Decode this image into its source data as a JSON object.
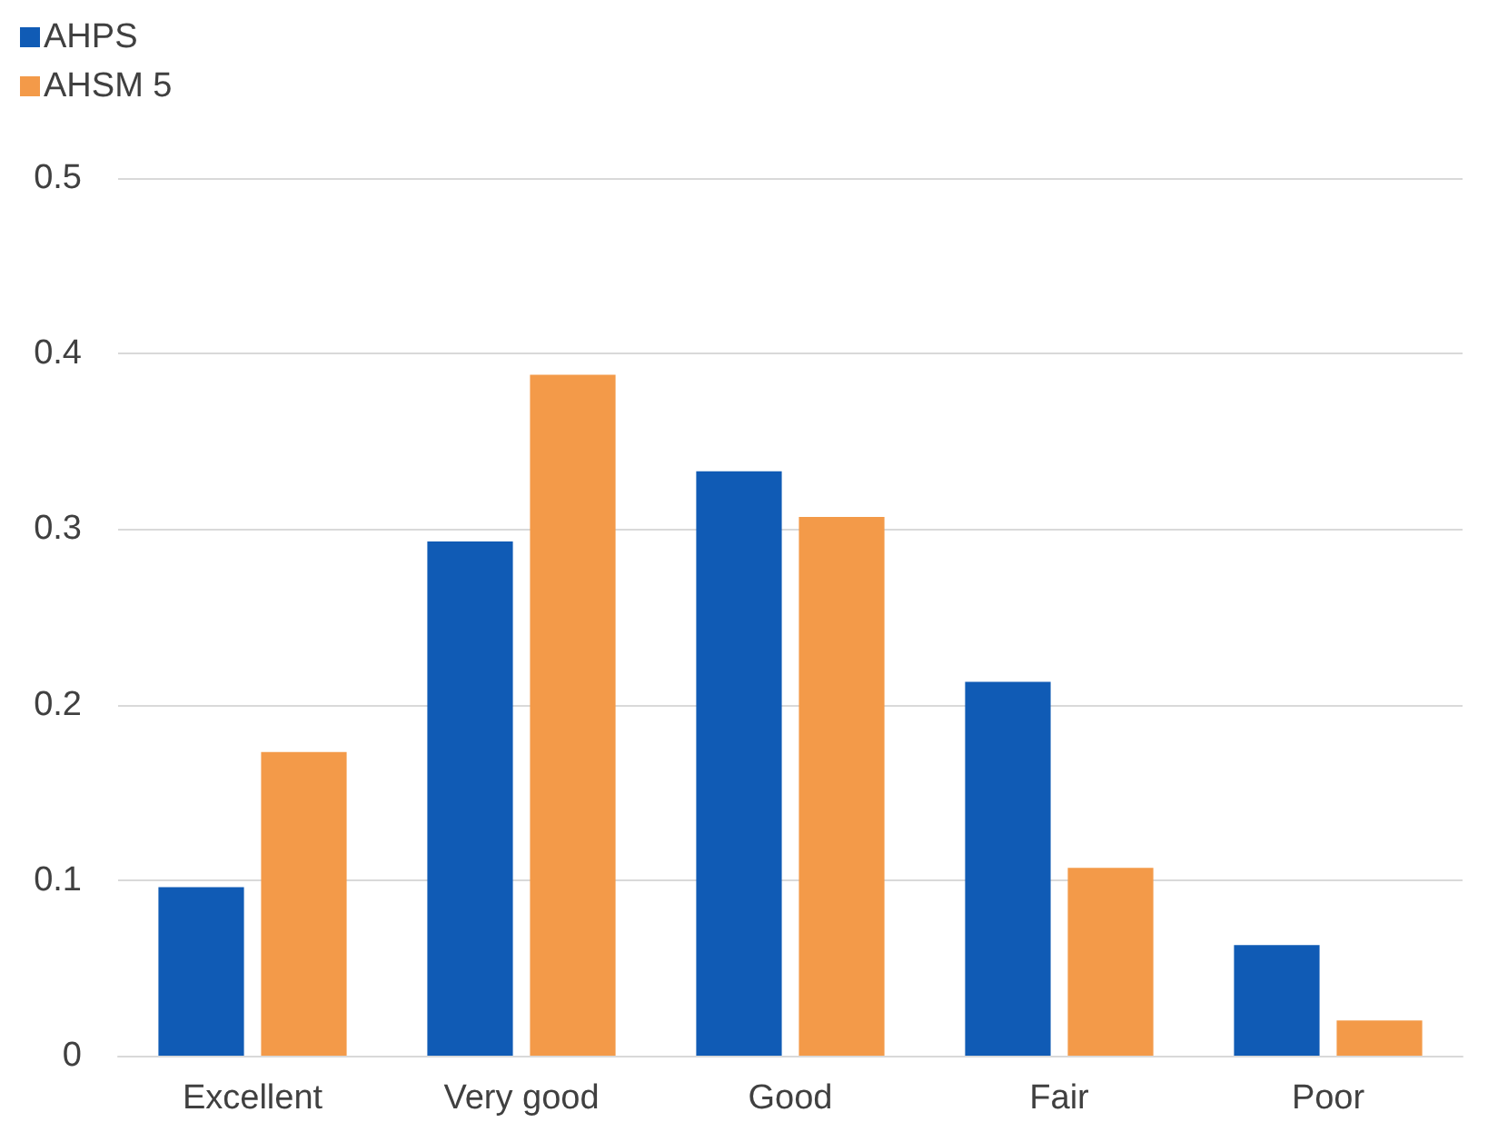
{
  "chart_data": {
    "type": "bar",
    "categories": [
      "Excellent",
      "Very good",
      "Good",
      "Fair",
      "Poor"
    ],
    "series": [
      {
        "name": "AHPS",
        "color": "#105bb5",
        "values": [
          0.096,
          0.293,
          0.333,
          0.213,
          0.063
        ]
      },
      {
        "name": "AHSM 5",
        "color": "#f39a49",
        "values": [
          0.173,
          0.388,
          0.307,
          0.107,
          0.02
        ]
      }
    ],
    "ylim": [
      0,
      0.5
    ],
    "yticks": [
      0,
      0.1,
      0.2,
      0.3,
      0.4,
      0.5
    ],
    "grid": "y",
    "legend": "top left"
  }
}
